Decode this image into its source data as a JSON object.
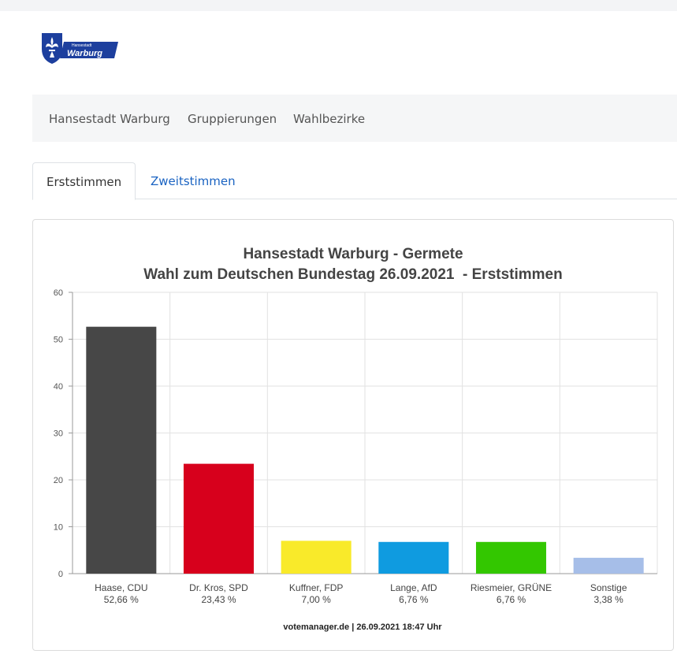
{
  "header": {
    "logo_text_top": "Hansestadt",
    "logo_text_main": "Warburg"
  },
  "nav": {
    "items": [
      "Hansestadt Warburg",
      "Gruppierungen",
      "Wahlbezirke"
    ]
  },
  "tabs": [
    {
      "label": "Erststimmen",
      "active": true
    },
    {
      "label": "Zweitstimmen",
      "active": false
    }
  ],
  "chart_data": {
    "type": "bar",
    "title": "Hansestadt Warburg - Germete",
    "subtitle": "Wahl zum Deutschen Bundestag 26.09.2021  - Erststimmen",
    "categories": [
      "Haase, CDU",
      "Dr. Kros, SPD",
      "Kuffner, FDP",
      "Lange, AfD",
      "Riesmeier, GRÜNE",
      "Sonstige"
    ],
    "value_labels": [
      "52,66 %",
      "23,43 %",
      "7,00 %",
      "6,76 %",
      "6,76 %",
      "3,38 %"
    ],
    "values": [
      52.66,
      23.43,
      7.0,
      6.76,
      6.76,
      3.38
    ],
    "colors": [
      "#474747",
      "#d7001c",
      "#f9ea2a",
      "#0f9be0",
      "#33c700",
      "#a6bee8"
    ],
    "ylim": [
      0,
      60
    ],
    "yticks": [
      0,
      10,
      20,
      30,
      40,
      50,
      60
    ],
    "grid": true,
    "footer": "votemanager.de | 26.09.2021 18:47 Uhr"
  }
}
